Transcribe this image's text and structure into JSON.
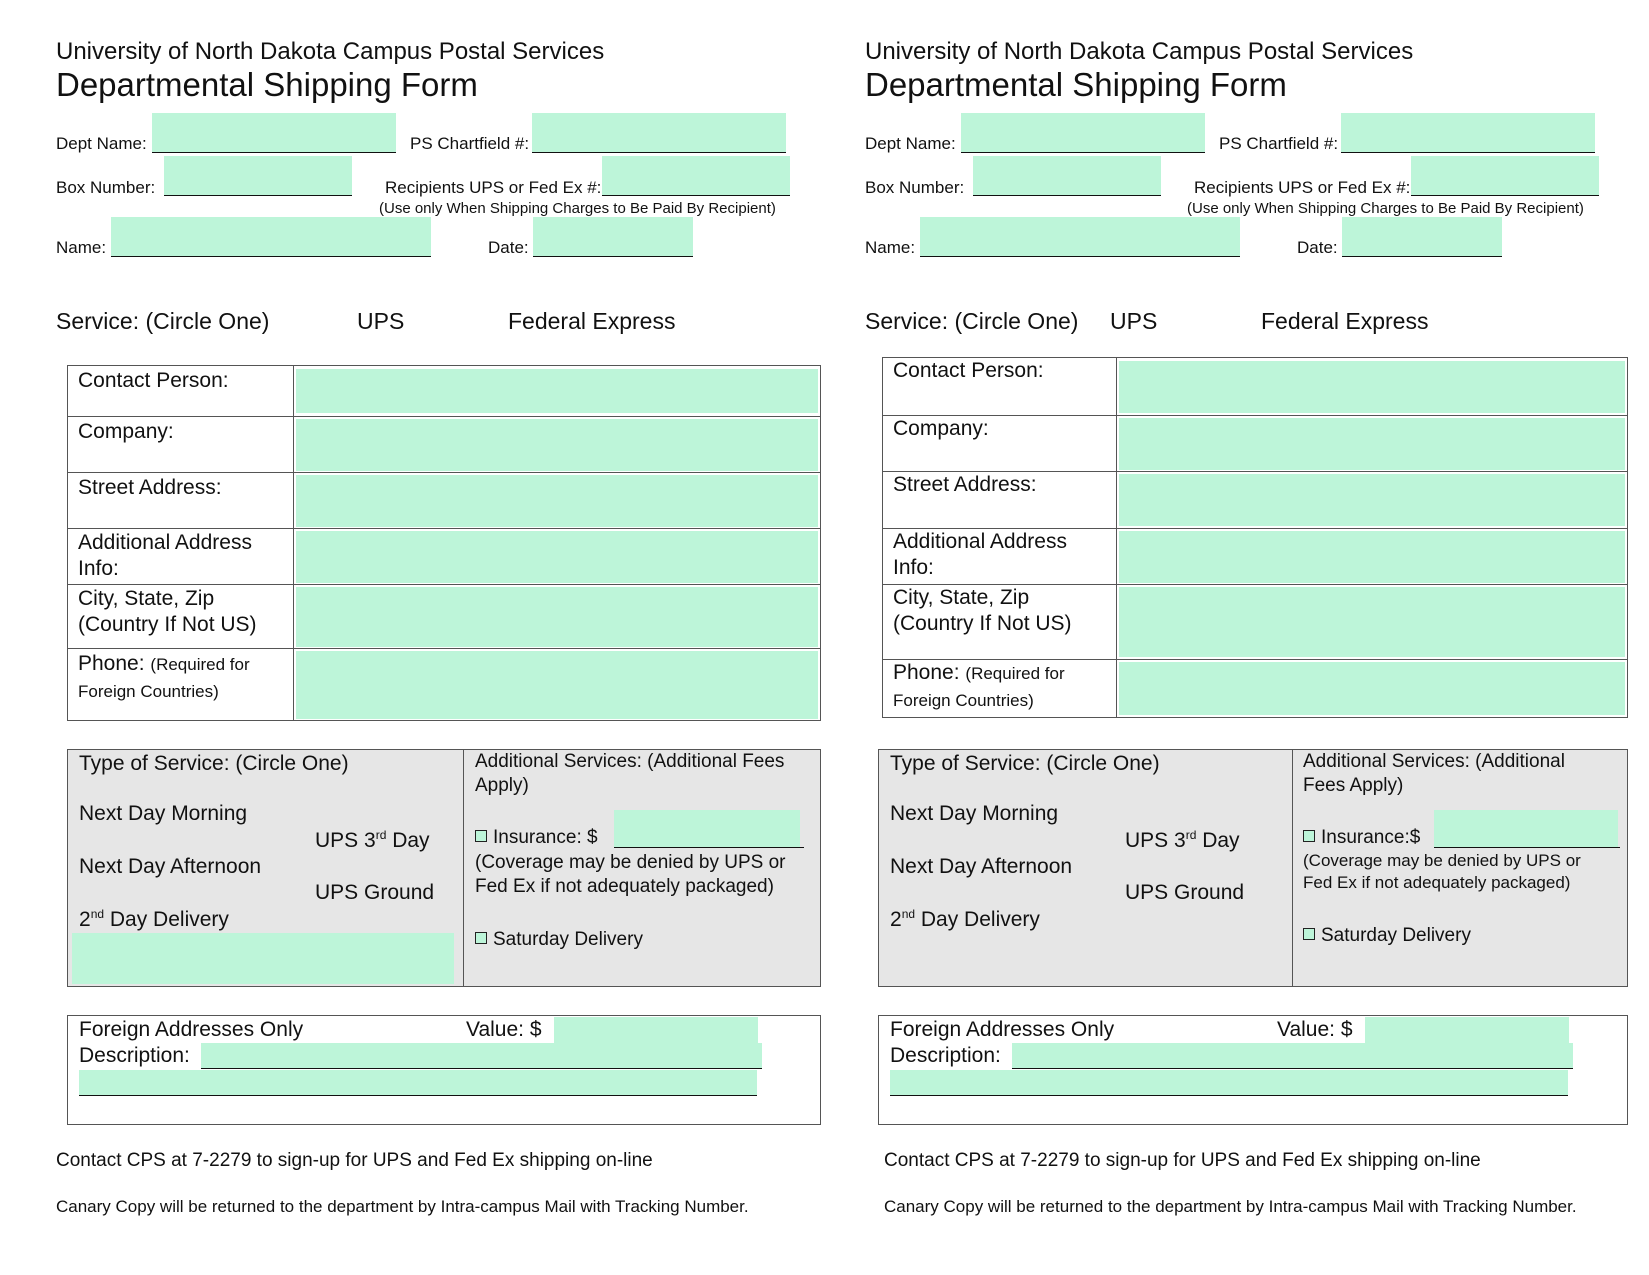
{
  "form": {
    "university": "University of North Dakota Campus Postal Services",
    "title": "Departmental Shipping Form",
    "dept_name_label": "Dept Name:",
    "ps_chartfield_label": "PS Chartfield #:",
    "box_number_label": "Box Number:",
    "recipients_label": "Recipients UPS or Fed Ex #:",
    "recipients_note": "(Use only When Shipping Charges to Be Paid By Recipient)",
    "name_label": "Name:",
    "date_label": "Date:",
    "service_label": "Service:  (Circle One)",
    "service_ups": "UPS",
    "service_fedex": "Federal Express",
    "address_rows": {
      "contact": "Contact Person:",
      "company": "Company:",
      "street": "Street Address:",
      "additional_1": "Additional Address",
      "additional_2": "Info:",
      "city_1": "City, State, Zip",
      "city_2": "(Country If Not US)",
      "phone": "Phone:",
      "phone_note_1": "(Required for",
      "phone_note_2": "Foreign Countries)"
    },
    "type_of_service": {
      "heading": "Type of Service:  (Circle One)",
      "next_day_morning": "Next Day Morning",
      "next_day_afternoon": "Next Day Afternoon",
      "second_day_num": "2",
      "second_day_sup": "nd",
      "second_day_rest": " Day Delivery",
      "ups3_pre": "UPS 3",
      "ups3_sup": "rd",
      "ups3_rest": " Day",
      "ups_ground": "UPS Ground"
    },
    "additional_services": {
      "heading": "Additional Services: (Additional Fees Apply)",
      "heading_line1_left": "Additional Services: (Additional Fees",
      "heading_line2_left": "Apply)",
      "heading_line1_right": "Additional Services: (Additional",
      "heading_line2_right": "Fees Apply)",
      "insurance_left": "Insurance:  $",
      "insurance_right": "Insurance:$",
      "coverage_line1": "(Coverage may be denied by UPS or",
      "coverage_line2": "Fed Ex if not adequately packaged)",
      "saturday": "Saturday Delivery"
    },
    "foreign": {
      "heading": "Foreign Addresses Only",
      "value": "Value:  $",
      "description": "Description:"
    },
    "footer_contact": "Contact CPS at 7-2279 to sign-up for UPS and Fed Ex shipping on-line",
    "footer_canary": "Canary Copy will be returned to the department by Intra-campus Mail with Tracking Number."
  }
}
